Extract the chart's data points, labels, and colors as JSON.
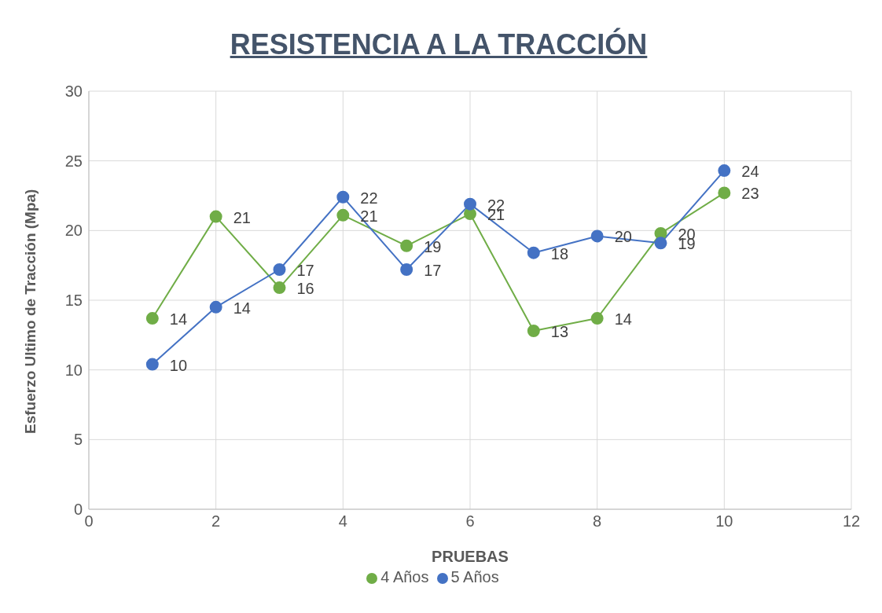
{
  "chart_data": {
    "type": "line",
    "title": "RESISTENCIA A LA TRACCIÓN",
    "xlabel": "PRUEBAS",
    "ylabel": "Esfuerzo Ultimo de Tracción (Mpa)",
    "x": [
      1,
      2,
      3,
      4,
      5,
      6,
      7,
      8,
      9,
      10
    ],
    "series": [
      {
        "name": "4 Años",
        "color": "#70ad47",
        "values": [
          13.7,
          21.0,
          15.9,
          21.1,
          18.9,
          21.2,
          12.8,
          13.7,
          19.8,
          22.7
        ],
        "value_labels": [
          "14",
          "21",
          "16",
          "21",
          "19",
          "21",
          "13",
          "14",
          "20",
          "23"
        ]
      },
      {
        "name": "5 Años",
        "color": "#4472c4",
        "values": [
          10.4,
          14.5,
          17.2,
          22.4,
          17.2,
          21.9,
          18.4,
          19.6,
          19.1,
          24.3
        ],
        "value_labels": [
          "10",
          "14",
          "17",
          "22",
          "17",
          "22",
          "18",
          "20",
          "19",
          "24"
        ]
      }
    ],
    "xlim": [
      0,
      12
    ],
    "xticks": [
      0,
      2,
      4,
      6,
      8,
      10,
      12
    ],
    "ylim": [
      0,
      30
    ],
    "yticks": [
      0,
      5,
      10,
      15,
      20,
      25,
      30
    ],
    "grid": true,
    "legend": "bottom",
    "marker": "circle",
    "line_style": "solid"
  }
}
